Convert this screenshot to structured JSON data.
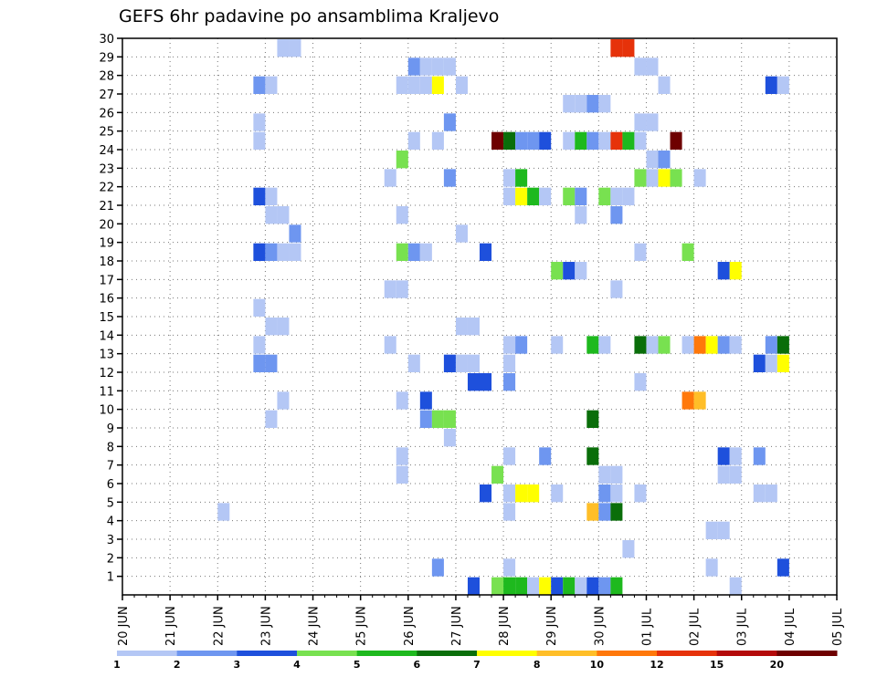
{
  "chart_data": {
    "type": "heatmap",
    "title": "GEFS 6hr padavine po ansamblima Kraljevo",
    "y_ticks": [
      "1",
      "2",
      "3",
      "4",
      "5",
      "6",
      "7",
      "8",
      "9",
      "10",
      "11",
      "12",
      "13",
      "14",
      "15",
      "16",
      "17",
      "18",
      "19",
      "20",
      "21",
      "22",
      "23",
      "24",
      "25",
      "26",
      "27",
      "28",
      "29",
      "30"
    ],
    "ylim": [
      0,
      30
    ],
    "x_ticks": [
      "20 JUN",
      "21 JUN",
      "22 JUN",
      "23 JUN",
      "24 JUN",
      "25 JUN",
      "26 JUN",
      "27 JUN",
      "28 JUN",
      "29 JUN",
      "30 JUN",
      "01 JUL",
      "02 JUL",
      "03 JUL",
      "04 JUL",
      "05 JUL"
    ],
    "x_steps_per_day": 4,
    "x_total_steps": 60,
    "grid": true,
    "colorbar": {
      "labels": [
        "1",
        "2",
        "3",
        "4",
        "5",
        "6",
        "7",
        "8",
        "10",
        "12",
        "15",
        "20"
      ],
      "colors": [
        "#b4c7f5",
        "#6e96f0",
        "#1e50dc",
        "#78e150",
        "#1eb91e",
        "#0a6e0a",
        "#ffff00",
        "#ffbe28",
        "#ff780a",
        "#e6320a",
        "#b40a0a",
        "#6e0000"
      ]
    },
    "cells": [
      [
        3.25,
        30,
        0
      ],
      [
        3.5,
        30,
        0
      ],
      [
        10.25,
        30,
        9
      ],
      [
        10.5,
        30,
        9
      ],
      [
        6,
        29,
        1
      ],
      [
        6.25,
        29,
        0
      ],
      [
        6.5,
        29,
        0
      ],
      [
        6.75,
        29,
        0
      ],
      [
        10.75,
        29,
        0
      ],
      [
        11,
        29,
        0
      ],
      [
        2.75,
        28,
        1
      ],
      [
        3,
        28,
        0
      ],
      [
        5.75,
        28,
        0
      ],
      [
        6,
        28,
        0
      ],
      [
        6.25,
        28,
        0
      ],
      [
        6.5,
        28,
        6
      ],
      [
        7,
        28,
        0
      ],
      [
        11.25,
        28,
        0
      ],
      [
        13.5,
        28,
        2
      ],
      [
        13.75,
        28,
        0
      ],
      [
        9.25,
        27,
        0
      ],
      [
        9.5,
        27,
        0
      ],
      [
        9.75,
        27,
        1
      ],
      [
        10,
        27,
        0
      ],
      [
        2.75,
        26,
        0
      ],
      [
        6.75,
        26,
        1
      ],
      [
        10.75,
        26,
        0
      ],
      [
        11,
        26,
        0
      ],
      [
        2.75,
        25,
        0
      ],
      [
        6,
        25,
        0
      ],
      [
        6.5,
        25,
        0
      ],
      [
        7.75,
        25,
        11
      ],
      [
        8,
        25,
        5
      ],
      [
        8.25,
        25,
        1
      ],
      [
        8.5,
        25,
        1
      ],
      [
        8.75,
        25,
        2
      ],
      [
        9.25,
        25,
        0
      ],
      [
        9.5,
        25,
        4
      ],
      [
        9.75,
        25,
        1
      ],
      [
        10,
        25,
        0
      ],
      [
        10.25,
        25,
        9
      ],
      [
        10.5,
        25,
        4
      ],
      [
        10.75,
        25,
        0
      ],
      [
        11.5,
        25,
        11
      ],
      [
        5.75,
        24,
        3
      ],
      [
        11,
        24,
        0
      ],
      [
        11.25,
        24,
        1
      ],
      [
        5.5,
        23,
        0
      ],
      [
        6.75,
        23,
        1
      ],
      [
        8,
        23,
        0
      ],
      [
        8.25,
        23,
        4
      ],
      [
        10.75,
        23,
        3
      ],
      [
        11,
        23,
        0
      ],
      [
        11.25,
        23,
        6
      ],
      [
        11.5,
        23,
        3
      ],
      [
        12,
        23,
        0
      ],
      [
        2.75,
        22,
        2
      ],
      [
        3,
        22,
        0
      ],
      [
        8,
        22,
        0
      ],
      [
        8.25,
        22,
        6
      ],
      [
        8.5,
        22,
        4
      ],
      [
        8.75,
        22,
        0
      ],
      [
        9.25,
        22,
        3
      ],
      [
        9.5,
        22,
        1
      ],
      [
        10,
        22,
        3
      ],
      [
        10.25,
        22,
        0
      ],
      [
        10.5,
        22,
        0
      ],
      [
        3,
        21,
        0
      ],
      [
        3.25,
        21,
        0
      ],
      [
        5.75,
        21,
        0
      ],
      [
        9.5,
        21,
        0
      ],
      [
        10.25,
        21,
        1
      ],
      [
        3.5,
        20,
        1
      ],
      [
        7,
        20,
        0
      ],
      [
        2.75,
        19,
        2
      ],
      [
        3,
        19,
        1
      ],
      [
        3.25,
        19,
        0
      ],
      [
        3.5,
        19,
        0
      ],
      [
        5.75,
        19,
        3
      ],
      [
        6,
        19,
        1
      ],
      [
        6.25,
        19,
        0
      ],
      [
        7.5,
        19,
        2
      ],
      [
        10.75,
        19,
        0
      ],
      [
        11.75,
        19,
        3
      ],
      [
        9,
        18,
        3
      ],
      [
        9.25,
        18,
        2
      ],
      [
        9.5,
        18,
        0
      ],
      [
        12.5,
        18,
        2
      ],
      [
        12.75,
        18,
        6
      ],
      [
        5.75,
        17,
        0
      ],
      [
        5.5,
        17,
        0
      ],
      [
        10.25,
        17,
        0
      ],
      [
        2.75,
        16,
        0
      ],
      [
        3,
        15,
        0
      ],
      [
        3.25,
        15,
        0
      ],
      [
        7,
        15,
        0
      ],
      [
        7.25,
        15,
        0
      ],
      [
        2.75,
        14,
        0
      ],
      [
        5.5,
        14,
        0
      ],
      [
        8,
        14,
        0
      ],
      [
        8.25,
        14,
        1
      ],
      [
        9,
        14,
        0
      ],
      [
        9.75,
        14,
        4
      ],
      [
        10,
        14,
        0
      ],
      [
        10.75,
        14,
        5
      ],
      [
        11,
        14,
        0
      ],
      [
        11.25,
        14,
        3
      ],
      [
        11.75,
        14,
        0
      ],
      [
        12,
        14,
        8
      ],
      [
        12.25,
        14,
        6
      ],
      [
        12.5,
        14,
        1
      ],
      [
        12.75,
        14,
        0
      ],
      [
        13.5,
        14,
        1
      ],
      [
        13.75,
        14,
        5
      ],
      [
        2.75,
        13,
        1
      ],
      [
        3,
        13,
        1
      ],
      [
        6,
        13,
        0
      ],
      [
        6.75,
        13,
        2
      ],
      [
        7,
        13,
        0
      ],
      [
        7.25,
        13,
        0
      ],
      [
        8,
        13,
        0
      ],
      [
        13.25,
        13,
        2
      ],
      [
        13.5,
        13,
        0
      ],
      [
        13.75,
        13,
        6
      ],
      [
        7.25,
        12,
        2
      ],
      [
        7.5,
        12,
        2
      ],
      [
        8,
        12,
        1
      ],
      [
        10.75,
        12,
        0
      ],
      [
        3.25,
        11,
        0
      ],
      [
        5.75,
        11,
        0
      ],
      [
        6.25,
        11,
        2
      ],
      [
        11.75,
        11,
        8
      ],
      [
        12,
        11,
        7
      ],
      [
        3,
        10,
        0
      ],
      [
        6.25,
        10,
        1
      ],
      [
        6.5,
        10,
        3
      ],
      [
        6.75,
        10,
        3
      ],
      [
        9.75,
        10,
        5
      ],
      [
        6.75,
        9,
        0
      ],
      [
        5.75,
        8,
        0
      ],
      [
        8,
        8,
        0
      ],
      [
        8.75,
        8,
        1
      ],
      [
        9.75,
        8,
        5
      ],
      [
        12.5,
        8,
        2
      ],
      [
        12.75,
        8,
        0
      ],
      [
        13.25,
        8,
        1
      ],
      [
        5.75,
        7,
        0
      ],
      [
        7.75,
        7,
        3
      ],
      [
        10,
        7,
        0
      ],
      [
        10.25,
        7,
        0
      ],
      [
        12.5,
        7,
        0
      ],
      [
        12.75,
        7,
        0
      ],
      [
        7.5,
        6,
        2
      ],
      [
        8,
        6,
        0
      ],
      [
        8.25,
        6,
        6
      ],
      [
        8.5,
        6,
        6
      ],
      [
        9,
        6,
        0
      ],
      [
        10,
        6,
        1
      ],
      [
        10.25,
        6,
        0
      ],
      [
        10.75,
        6,
        0
      ],
      [
        13.25,
        6,
        0
      ],
      [
        13.5,
        6,
        0
      ],
      [
        2,
        5,
        0
      ],
      [
        8,
        5,
        0
      ],
      [
        9.75,
        5,
        7
      ],
      [
        10,
        5,
        1
      ],
      [
        10.25,
        5,
        5
      ],
      [
        12.25,
        4,
        0
      ],
      [
        12.5,
        4,
        0
      ],
      [
        10.5,
        3,
        0
      ],
      [
        6.5,
        2,
        1
      ],
      [
        8,
        2,
        0
      ],
      [
        12.25,
        2,
        0
      ],
      [
        13.75,
        2,
        2
      ],
      [
        7.25,
        1,
        2
      ],
      [
        7.75,
        1,
        3
      ],
      [
        8,
        1,
        4
      ],
      [
        8.25,
        1,
        4
      ],
      [
        8.5,
        1,
        0
      ],
      [
        8.75,
        1,
        6
      ],
      [
        9,
        1,
        2
      ],
      [
        9.25,
        1,
        4
      ],
      [
        9.5,
        1,
        0
      ],
      [
        9.75,
        1,
        2
      ],
      [
        10,
        1,
        1
      ],
      [
        10.25,
        1,
        4
      ],
      [
        12.75,
        1,
        0
      ]
    ]
  }
}
